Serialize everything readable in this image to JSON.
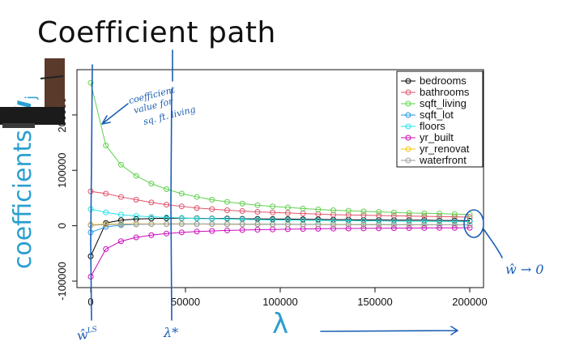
{
  "slide": {
    "title": "Coefficient path",
    "ylabel_main": "coefficients ",
    "ylabel_hat": "ŵ",
    "ylabel_sub": "j",
    "xlabel": "λ"
  },
  "annotations": {
    "coef_note_lines": [
      "coefficient",
      "value for",
      "sq. ft. living"
    ],
    "w_ls": "ŵ",
    "w_ls_sup": "LS",
    "lambda_star": "λ*",
    "w_to_zero": "ŵ → 0"
  },
  "chart_data": {
    "type": "line",
    "title": "",
    "xlabel": "λ",
    "ylabel": "coefficients ŵj",
    "xlim": [
      0,
      200000
    ],
    "ylim": [
      -100000,
      270000
    ],
    "xticks": [
      0,
      50000,
      100000,
      150000,
      200000
    ],
    "yticks": [
      -100000,
      0,
      100000,
      200000
    ],
    "xtick_labels": [
      "0",
      "50000",
      "100000",
      "150000",
      "200000"
    ],
    "ytick_labels": [
      "-100000",
      "0",
      "100000",
      "200000"
    ],
    "grid": false,
    "legend_position": "top-right",
    "x": [
      0,
      8000,
      16000,
      24000,
      32000,
      40000,
      48000,
      56000,
      64000,
      72000,
      80000,
      88000,
      96000,
      104000,
      112000,
      120000,
      128000,
      136000,
      144000,
      152000,
      160000,
      168000,
      176000,
      184000,
      192000,
      200000
    ],
    "series": [
      {
        "name": "bedrooms",
        "color": "#000000",
        "values": [
          -55000,
          5000,
          10000,
          12000,
          13000,
          13500,
          13500,
          13500,
          13000,
          13000,
          12500,
          12500,
          12000,
          12000,
          11500,
          11500,
          11000,
          11000,
          10500,
          10500,
          10000,
          10000,
          10000,
          9500,
          9500,
          9000
        ]
      },
      {
        "name": "bathrooms",
        "color": "#df536b",
        "values": [
          62000,
          58000,
          52000,
          47000,
          42000,
          38000,
          35000,
          32000,
          30000,
          28000,
          26500,
          25000,
          24000,
          23000,
          22000,
          21000,
          20000,
          19500,
          19000,
          18500,
          18000,
          17500,
          17000,
          16500,
          16000,
          15500
        ]
      },
      {
        "name": "sqft_living",
        "color": "#61d04f",
        "values": [
          258000,
          145000,
          110000,
          90000,
          76000,
          66000,
          58000,
          52000,
          47000,
          43000,
          40000,
          37000,
          35000,
          33000,
          31000,
          29500,
          28000,
          27000,
          26000,
          25000,
          24000,
          23000,
          22500,
          22000,
          21000,
          20500
        ]
      },
      {
        "name": "sqft_lot",
        "color": "#2297e6",
        "values": [
          -12000,
          -2000,
          1000,
          2500,
          3000,
          3200,
          3300,
          3300,
          3200,
          3100,
          3000,
          2900,
          2800,
          2700,
          2600,
          2500,
          2400,
          2300,
          2200,
          2100,
          2000,
          1900,
          1800,
          1700,
          1600,
          1500
        ]
      },
      {
        "name": "floors",
        "color": "#28e2e5",
        "values": [
          30000,
          24000,
          20000,
          17500,
          16000,
          15000,
          14000,
          13000,
          12500,
          12000,
          11500,
          11000,
          10500,
          10000,
          9800,
          9500,
          9200,
          9000,
          8800,
          8500,
          8300,
          8100,
          8000,
          7800,
          7600,
          7500
        ]
      },
      {
        "name": "yr_built",
        "color": "#cd0bbc",
        "values": [
          -92000,
          -42000,
          -28000,
          -21000,
          -17000,
          -14000,
          -12000,
          -10500,
          -9500,
          -8500,
          -7800,
          -7200,
          -6700,
          -6200,
          -5800,
          -5500,
          -5200,
          -5000,
          -4800,
          -4600,
          -4400,
          -4200,
          -4000,
          -3900,
          -3800,
          -3700
        ]
      },
      {
        "name": "yr_renovated",
        "color": "#f5c710",
        "values": [
          2000,
          3000,
          3300,
          3400,
          3400,
          3300,
          3200,
          3100,
          3000,
          2900,
          2800,
          2700,
          2600,
          2500,
          2400,
          2300,
          2200,
          2100,
          2000,
          1950,
          1900,
          1850,
          1800,
          1750,
          1700,
          1650
        ]
      },
      {
        "name": "waterfront",
        "color": "#9e9e9e",
        "values": [
          1000,
          2000,
          2500,
          2800,
          3000,
          3000,
          3000,
          2900,
          2800,
          2700,
          2600,
          2500,
          2400,
          2300,
          2200,
          2100,
          2000,
          1950,
          1900,
          1850,
          1800,
          1750,
          1700,
          1650,
          1600,
          1550
        ]
      }
    ],
    "legend_labels": [
      "bedrooms",
      "bathrooms",
      "sqft_living",
      "sqft_lot",
      "floors",
      "yr_built",
      "yr_renovat",
      "waterfront"
    ]
  }
}
